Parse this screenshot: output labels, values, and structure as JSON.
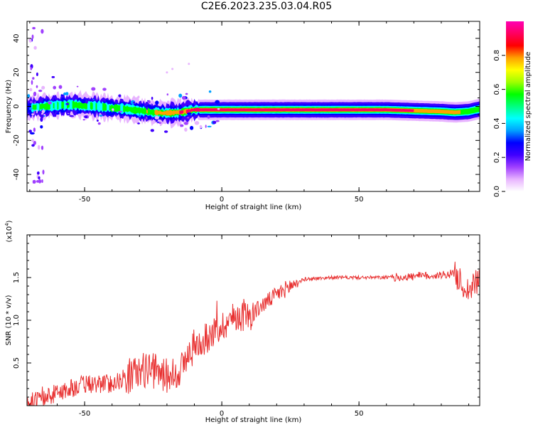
{
  "title": "C2E6.2023.235.03.04.R05",
  "chart_data": [
    {
      "type": "heatmap",
      "xlabel": "Height of straight line (km)",
      "ylabel": "Frequency (Hz)",
      "xlim": [
        -71,
        94
      ],
      "ylim": [
        -50,
        50
      ],
      "xticks": [
        -50,
        0,
        50
      ],
      "yticks": [
        -40,
        -20,
        0,
        20,
        40
      ],
      "colorbar": {
        "label": "Normalized spectral amplitude",
        "range": [
          0,
          1
        ],
        "ticks": [
          "0.0",
          "0.2",
          "0.4",
          "0.6",
          "0.8"
        ],
        "colors": [
          "#ffffff",
          "#e8b4ff",
          "#a040ff",
          "#4000ff",
          "#0000ff",
          "#00a0ff",
          "#00ffff",
          "#00ff80",
          "#00ff00",
          "#a0ff00",
          "#ffff00",
          "#ffa000",
          "#ff0000",
          "#ff0060",
          "#ff00b4"
        ]
      },
      "ridge": {
        "x": [
          -71,
          -65,
          -60,
          -55,
          -50,
          -45,
          -40,
          -35,
          -30,
          -25,
          -20,
          -15,
          -12,
          -10,
          0,
          10,
          20,
          30,
          40,
          50,
          60,
          70,
          80,
          85,
          90,
          94
        ],
        "freq": [
          -1,
          0,
          0.5,
          1,
          0.5,
          0,
          -1,
          -1.5,
          -2.5,
          -3.5,
          -4,
          -3.5,
          -2.5,
          -2,
          -2,
          -2,
          -2,
          -2,
          -2,
          -2,
          -2,
          -2.5,
          -3,
          -3.5,
          -3,
          -1.5
        ],
        "amplitude": [
          0.25,
          0.4,
          0.45,
          0.45,
          0.45,
          0.4,
          0.5,
          0.45,
          0.5,
          0.6,
          0.7,
          0.75,
          0.85,
          0.9,
          0.92,
          0.95,
          0.95,
          0.95,
          0.95,
          0.95,
          0.95,
          0.85,
          0.75,
          0.85,
          0.5,
          0.55
        ]
      }
    },
    {
      "type": "line",
      "xlabel": "Height of straight line (km)",
      "ylabel": "SNR (10 * v/v)",
      "multiplier": "(x10",
      "multiplier_exp": "4",
      "multiplier_close": ")",
      "xlim": [
        -71,
        94
      ],
      "ylim": [
        0,
        20000
      ],
      "xticks": [
        -50,
        0,
        50
      ],
      "yticks": [
        5000,
        10000,
        15000
      ],
      "ytick_labels": [
        "0.5",
        "1.0",
        "1.5"
      ],
      "color": "#e83030",
      "trend": {
        "x": [
          -71,
          -65,
          -60,
          -50,
          -40,
          -33,
          -27,
          -20,
          -15,
          -10,
          -5,
          0,
          5,
          10,
          15,
          20,
          25,
          30,
          40,
          50,
          60,
          70,
          80,
          85,
          88,
          90,
          94
        ],
        "y": [
          300,
          800,
          1500,
          2500,
          2600,
          3600,
          4300,
          3500,
          4200,
          7000,
          8000,
          9300,
          10500,
          10500,
          11800,
          13000,
          14000,
          14800,
          15000,
          15000,
          15000,
          15100,
          15300,
          15500,
          14000,
          13500,
          14800
        ]
      }
    }
  ]
}
